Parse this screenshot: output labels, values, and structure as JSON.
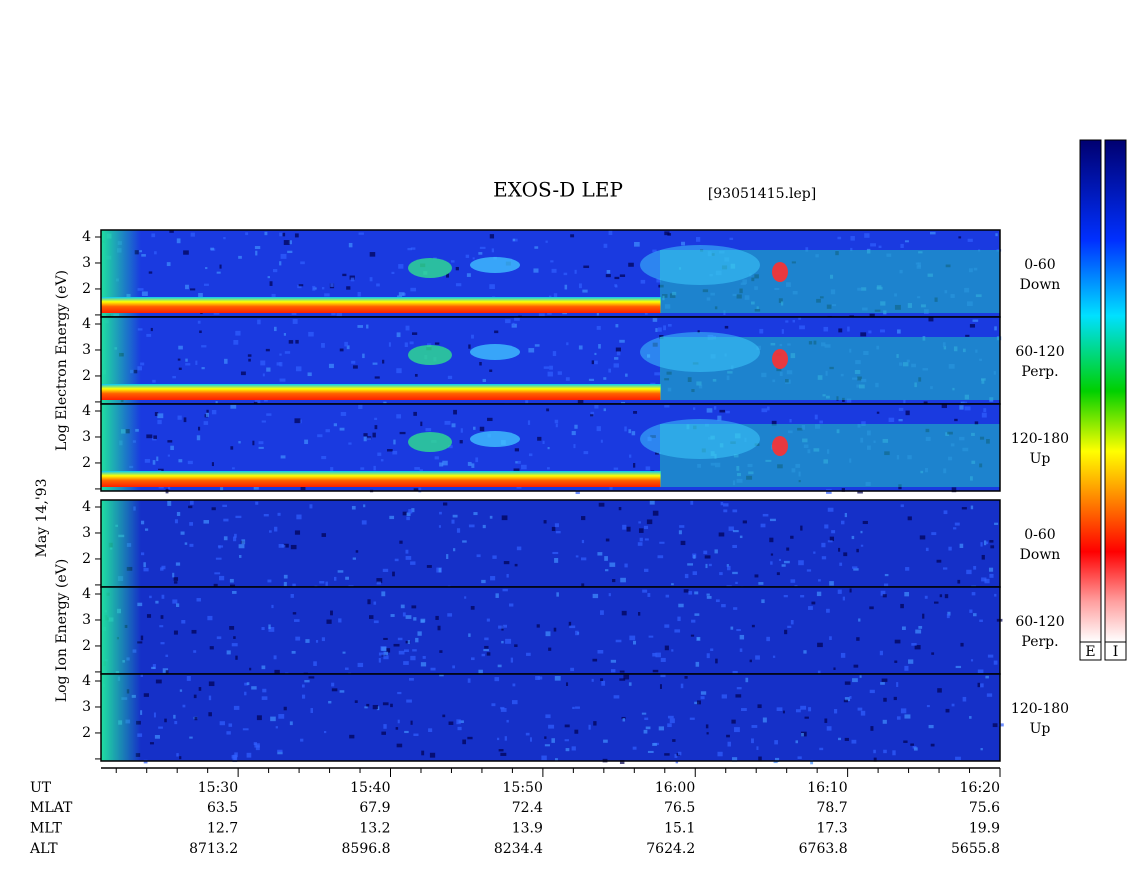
{
  "chart_data": {
    "type": "spectrogram",
    "title": "EXOS-D LEP",
    "file": "[93051415.lep]",
    "date_label": "May 14,'93",
    "groups": [
      {
        "ylabel": "Log  Electron  Energy (eV)",
        "species": "electron",
        "panels": [
          {
            "label": [
              "0-60",
              "Down"
            ]
          },
          {
            "label": [
              "60-120",
              "Perp."
            ]
          },
          {
            "label": [
              "120-180",
              "Up"
            ]
          }
        ]
      },
      {
        "ylabel": "Log  Ion  Energy (eV)",
        "species": "ion",
        "panels": [
          {
            "label": [
              "0-60",
              "Down"
            ]
          },
          {
            "label": [
              "60-120",
              "Perp."
            ]
          },
          {
            "label": [
              "120-180",
              "Up"
            ]
          }
        ]
      }
    ],
    "ylim": [
      0.92,
      4.27
    ],
    "yticks": [
      2,
      3,
      4
    ],
    "minor_yticks": [
      1
    ],
    "xlim": [
      921,
      980
    ],
    "xticks": [
      {
        "value": 930,
        "label": "15:30"
      },
      {
        "value": 940,
        "label": "15:40"
      },
      {
        "value": 950,
        "label": "15:50"
      },
      {
        "value": 960,
        "label": "16:00"
      },
      {
        "value": 970,
        "label": "16:10"
      },
      {
        "value": 980,
        "label": "16:20"
      }
    ],
    "minor_xticks": [
      922,
      924,
      926,
      928,
      932,
      934,
      936,
      938,
      942,
      944,
      946,
      948,
      952,
      954,
      956,
      958,
      962,
      964,
      966,
      968,
      972,
      974,
      976,
      978
    ],
    "xlabel": "UT",
    "rows": [
      {
        "name": "MLAT",
        "values": [
          "63.5",
          "67.9",
          "72.4",
          "76.5",
          "78.7",
          "75.6"
        ]
      },
      {
        "name": "MLT",
        "values": [
          "12.7",
          "13.2",
          "13.9",
          "15.1",
          "17.3",
          "19.9"
        ]
      },
      {
        "name": "ALT",
        "values": [
          "8713.2",
          "8596.8",
          "8234.4",
          "7624.2",
          "6763.8",
          "5655.8"
        ]
      }
    ],
    "colorbars": [
      "E",
      "I"
    ]
  }
}
